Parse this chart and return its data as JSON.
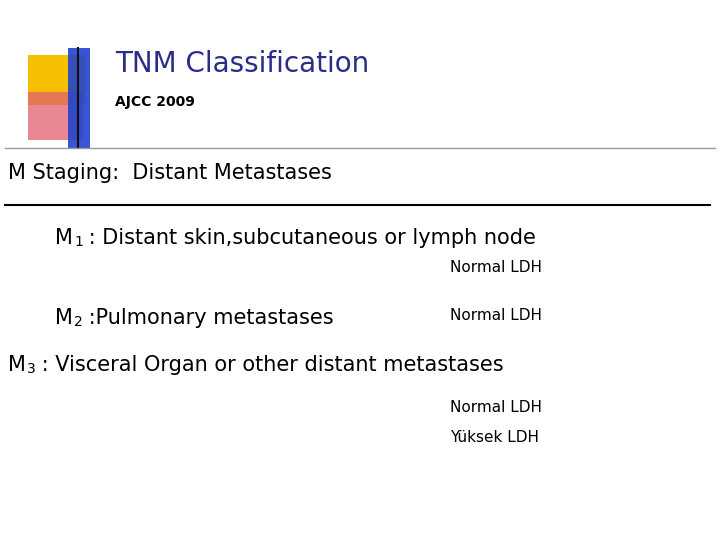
{
  "title": "TNM Classification",
  "subtitle": "AJCC 2009",
  "title_color": "#2b2b8a",
  "subtitle_color": "#000000",
  "bg_color": "#ffffff",
  "section_title": "M Staging:  Distant Metastases",
  "m1_text": " : Distant skin,subcutaneous or lymph node",
  "m1_note": "Normal LDH",
  "m2_text": " :Pulmonary metastases",
  "m2_note": "Normal LDH",
  "m3_text": " : Visceral Organ or other distant metastases",
  "m3_note1": "Normal LDH",
  "m3_note2": "Yüksek LDH",
  "square_yellow": "#f5c000",
  "square_red": "#e06070",
  "square_blue": "#2244cc",
  "line_color_header": "#999999",
  "line_color_section": "#000000"
}
